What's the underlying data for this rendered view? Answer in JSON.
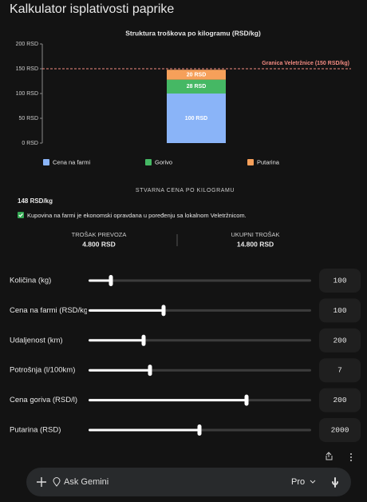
{
  "header": {
    "title": "Kalkulator isplativosti paprike"
  },
  "chart_data": {
    "type": "bar",
    "stacked": true,
    "title": "Struktura troškova po kilogramu (RSD/kg)",
    "categories": [
      null
    ],
    "series": [
      {
        "name": "Cena na farmi",
        "color": "#8ab4f8",
        "values": [
          100
        ],
        "value_labels": [
          "100 RSD"
        ]
      },
      {
        "name": "Gorivo",
        "color": "#45b864",
        "values": [
          28
        ],
        "value_labels": [
          "28 RSD"
        ]
      },
      {
        "name": "Putarina",
        "color": "#f6a05a",
        "values": [
          20
        ],
        "value_labels": [
          "20 RSD"
        ]
      }
    ],
    "ylim": [
      0,
      200
    ],
    "yticks": [
      {
        "value": 0,
        "label": "0 RSD"
      },
      {
        "value": 50,
        "label": "50 RSD"
      },
      {
        "value": 100,
        "label": "100 RSD"
      },
      {
        "value": 150,
        "label": "150 RSD"
      },
      {
        "value": 200,
        "label": "200 RSD"
      }
    ],
    "reference_line": {
      "value": 150,
      "label": "Granica Veletržnice (150 RSD/kg)",
      "color": "#f28b82"
    },
    "legend": "bottom"
  },
  "summary": {
    "heading": "STVARNA CENA PO KILOGRAMU",
    "price": "148 RSD/kg",
    "message": "Kupovina na farmi je ekonomski opravdana u poređenju sa lokalnom Veletržnicom.",
    "transport_label": "TROŠAK PREVOZA",
    "transport_value": "4.800 RSD",
    "total_label": "UKUPNI TROŠAK",
    "total_value": "14.800 RSD"
  },
  "controls": [
    {
      "label": "Količina (kg)",
      "value": 100
    },
    {
      "label": "Cena na farmi (RSD/kg)",
      "value": 100
    },
    {
      "label": "Udaljenost (km)",
      "value": 200
    },
    {
      "label": "Potrošnja (l/100km)",
      "value": 7
    },
    {
      "label": "Cena goriva (RSD/l)",
      "value": 200
    },
    {
      "label": "Putarina (RSD)",
      "value": 2000
    }
  ],
  "input_bar": {
    "placeholder": "Ask Gemini",
    "model": "Pro"
  }
}
